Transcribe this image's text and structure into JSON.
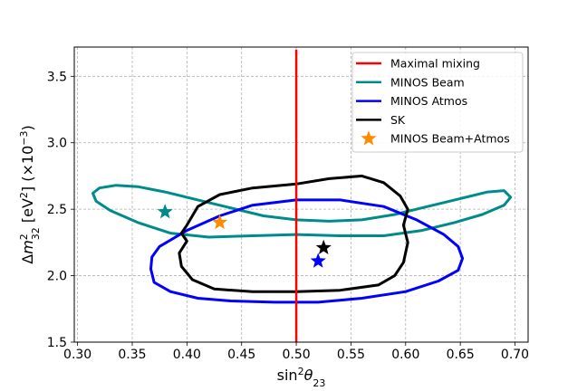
{
  "chart_data": {
    "type": "line",
    "xlim": [
      0.297,
      0.712
    ],
    "ylim": [
      1.5,
      3.72
    ],
    "x_ticks": [
      0.3,
      0.35,
      0.4,
      0.45,
      0.5,
      0.55,
      0.6,
      0.65,
      0.7
    ],
    "x_tick_labels": [
      "0.30",
      "0.35",
      "0.40",
      "0.45",
      "0.50",
      "0.55",
      "0.60",
      "0.65",
      "0.70"
    ],
    "y_ticks": [
      1.5,
      2.0,
      2.5,
      3.0,
      3.5
    ],
    "y_tick_labels": [
      "1.5",
      "2.0",
      "2.5",
      "3.0",
      "3.5"
    ],
    "xlabel": {
      "base": "sin",
      "sup1": "2",
      "italic": "θ",
      "sub": "23"
    },
    "ylabel": {
      "prefix": "Δ",
      "italic": "m",
      "sup": "2",
      "sub": "32",
      "mid": " [eV",
      "sup2": "2",
      "mid2": "] (×10",
      "sup3": "−3",
      "end": ")"
    },
    "grid": true,
    "legend_position": "top-right",
    "vertical_line": {
      "name": "Maximal mixing",
      "x": 0.5,
      "y": [
        1.5,
        3.7
      ],
      "color": "#ff0000"
    },
    "series": [
      {
        "name": "MINOS Beam",
        "color": "#008b8b",
        "points": [
          [
            0.314,
            2.62
          ],
          [
            0.32,
            2.66
          ],
          [
            0.335,
            2.68
          ],
          [
            0.355,
            2.67
          ],
          [
            0.38,
            2.63
          ],
          [
            0.41,
            2.57
          ],
          [
            0.44,
            2.51
          ],
          [
            0.47,
            2.45
          ],
          [
            0.5,
            2.42
          ],
          [
            0.53,
            2.41
          ],
          [
            0.56,
            2.42
          ],
          [
            0.59,
            2.46
          ],
          [
            0.62,
            2.52
          ],
          [
            0.65,
            2.58
          ],
          [
            0.675,
            2.63
          ],
          [
            0.69,
            2.64
          ],
          [
            0.696,
            2.59
          ],
          [
            0.69,
            2.53
          ],
          [
            0.67,
            2.46
          ],
          [
            0.645,
            2.4
          ],
          [
            0.615,
            2.34
          ],
          [
            0.58,
            2.3
          ],
          [
            0.54,
            2.3
          ],
          [
            0.5,
            2.31
          ],
          [
            0.46,
            2.3
          ],
          [
            0.42,
            2.29
          ],
          [
            0.385,
            2.32
          ],
          [
            0.355,
            2.4
          ],
          [
            0.33,
            2.49
          ],
          [
            0.317,
            2.56
          ],
          [
            0.314,
            2.62
          ]
        ]
      },
      {
        "name": "MINOS Atmos",
        "color": "#0000ff",
        "points": [
          [
            0.375,
            2.22
          ],
          [
            0.4,
            2.34
          ],
          [
            0.43,
            2.45
          ],
          [
            0.46,
            2.53
          ],
          [
            0.5,
            2.57
          ],
          [
            0.54,
            2.57
          ],
          [
            0.58,
            2.52
          ],
          [
            0.61,
            2.42
          ],
          [
            0.635,
            2.31
          ],
          [
            0.648,
            2.22
          ],
          [
            0.652,
            2.13
          ],
          [
            0.648,
            2.04
          ],
          [
            0.63,
            1.96
          ],
          [
            0.6,
            1.88
          ],
          [
            0.56,
            1.83
          ],
          [
            0.52,
            1.8
          ],
          [
            0.48,
            1.8
          ],
          [
            0.44,
            1.81
          ],
          [
            0.41,
            1.83
          ],
          [
            0.385,
            1.88
          ],
          [
            0.37,
            1.95
          ],
          [
            0.367,
            2.05
          ],
          [
            0.368,
            2.14
          ],
          [
            0.375,
            2.22
          ]
        ]
      },
      {
        "name": "SK",
        "color": "#000000",
        "points": [
          [
            0.4,
            2.38
          ],
          [
            0.41,
            2.52
          ],
          [
            0.43,
            2.61
          ],
          [
            0.46,
            2.66
          ],
          [
            0.5,
            2.69
          ],
          [
            0.53,
            2.73
          ],
          [
            0.56,
            2.75
          ],
          [
            0.58,
            2.7
          ],
          [
            0.595,
            2.6
          ],
          [
            0.602,
            2.5
          ],
          [
            0.598,
            2.38
          ],
          [
            0.602,
            2.25
          ],
          [
            0.598,
            2.1
          ],
          [
            0.59,
            2.0
          ],
          [
            0.575,
            1.93
          ],
          [
            0.54,
            1.89
          ],
          [
            0.5,
            1.88
          ],
          [
            0.46,
            1.88
          ],
          [
            0.425,
            1.9
          ],
          [
            0.405,
            1.97
          ],
          [
            0.395,
            2.07
          ],
          [
            0.393,
            2.17
          ],
          [
            0.4,
            2.26
          ],
          [
            0.395,
            2.32
          ],
          [
            0.4,
            2.38
          ]
        ]
      }
    ],
    "best_fits": [
      {
        "series": "MINOS Beam",
        "x": 0.38,
        "y": 2.48,
        "color": "#008b8b"
      },
      {
        "series": "MINOS Beam+Atmos",
        "x": 0.43,
        "y": 2.4,
        "color": "#ff8c00"
      },
      {
        "series": "MINOS Atmos",
        "x": 0.52,
        "y": 2.11,
        "color": "#0000ff"
      },
      {
        "series": "SK",
        "x": 0.525,
        "y": 2.21,
        "color": "#000000"
      }
    ],
    "legend": [
      {
        "label": "Maximal mixing",
        "color": "#ff0000",
        "marker": "line"
      },
      {
        "label": "MINOS Beam",
        "color": "#008b8b",
        "marker": "line"
      },
      {
        "label": "MINOS Atmos",
        "color": "#0000ff",
        "marker": "line"
      },
      {
        "label": "SK",
        "color": "#000000",
        "marker": "line"
      },
      {
        "label": "MINOS Beam+Atmos",
        "color": "#ff8c00",
        "marker": "star"
      }
    ]
  }
}
